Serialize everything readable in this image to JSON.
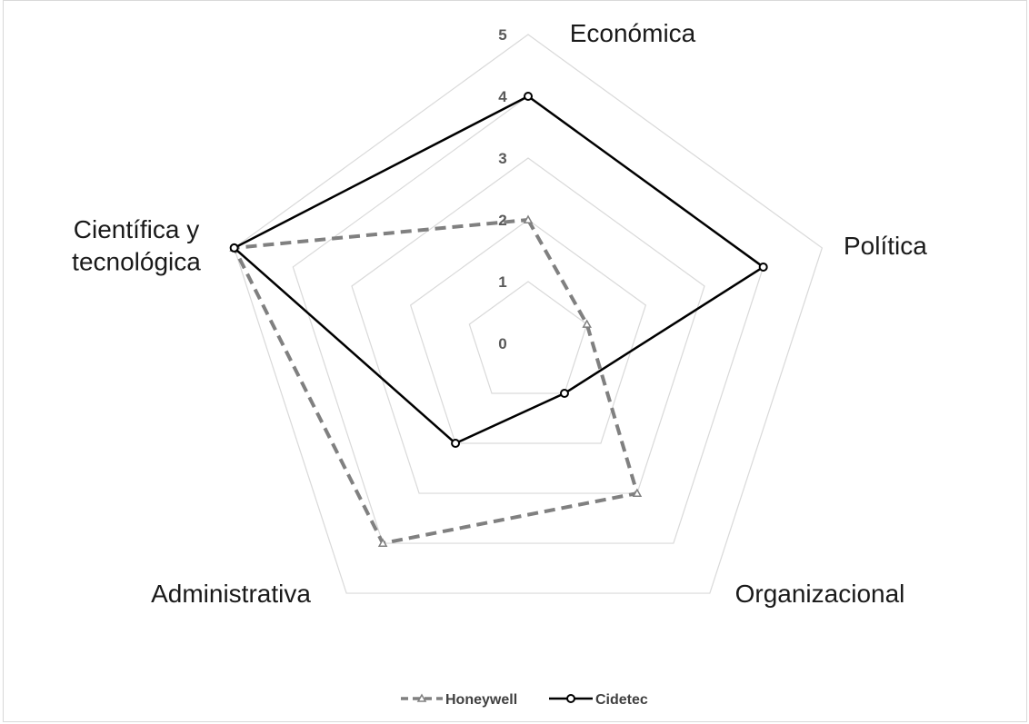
{
  "chart_data": {
    "type": "radar",
    "axes": [
      "Económica",
      "Política",
      "Organizacional",
      "Administrativa",
      "Científica y tecnológica"
    ],
    "axis_label_lines": [
      [
        "Económica"
      ],
      [
        "Política"
      ],
      [
        "Organizacional"
      ],
      [
        "Administrativa"
      ],
      [
        "Científica y",
        "tecnológica"
      ]
    ],
    "rlim": [
      0,
      5
    ],
    "ticks": [
      "0",
      "1",
      "2",
      "3",
      "4",
      "5"
    ],
    "grid": true,
    "legend_position": "bottom",
    "series": [
      {
        "name": "Honeywell",
        "values": [
          2,
          1,
          3,
          4,
          5
        ],
        "color": "#808080",
        "line_style": "dashed",
        "marker": "triangle"
      },
      {
        "name": "Cidetec",
        "values": [
          4,
          4,
          1,
          2,
          5
        ],
        "color": "#000000",
        "line_style": "solid",
        "marker": "circle"
      }
    ]
  }
}
